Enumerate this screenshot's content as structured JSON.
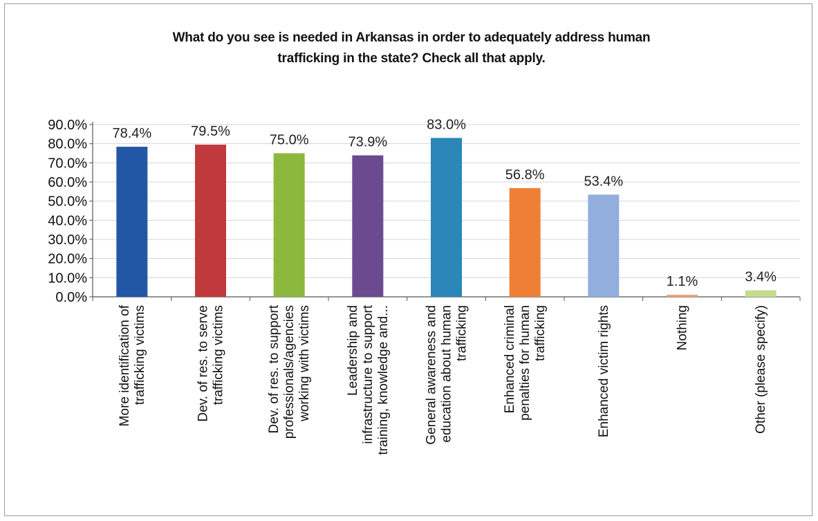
{
  "chart_data": {
    "type": "bar",
    "title": [
      "What do you see is needed in Arkansas in order to adequately address human",
      "trafficking in the state? Check all that apply."
    ],
    "xlabel": "",
    "ylabel": "",
    "ylim": [
      0,
      90
    ],
    "yticks": [
      "0.0%",
      "10.0%",
      "20.0%",
      "30.0%",
      "40.0%",
      "50.0%",
      "60.0%",
      "70.0%",
      "80.0%",
      "90.0%"
    ],
    "grid": true,
    "legend": "none",
    "categories": [
      [
        "More identification of",
        "trafficking victims"
      ],
      [
        "Dev. of res. to serve",
        "trafficking victims"
      ],
      [
        "Dev. of res. to support",
        "professionals/agencies",
        "working with victims"
      ],
      [
        "Leadership and",
        "infrastructure to support",
        "training, knowledge and..."
      ],
      [
        "General awareness and",
        "education about human",
        "trafficking"
      ],
      [
        "Enhanced criminal",
        "penalties for human",
        "trafficking"
      ],
      [
        "Enhanced victim rights"
      ],
      [
        "Nothing"
      ],
      [
        "Other (please specify)"
      ]
    ],
    "values": [
      78.4,
      79.5,
      75.0,
      73.9,
      83.0,
      56.8,
      53.4,
      1.1,
      3.4
    ],
    "value_labels": [
      "78.4%",
      "79.5%",
      "75.0%",
      "73.9%",
      "83.0%",
      "56.8%",
      "53.4%",
      "1.1%",
      "3.4%"
    ],
    "colors": [
      "#2257a6",
      "#c0393d",
      "#8db83e",
      "#6b4a8f",
      "#2a87b8",
      "#ee7f35",
      "#92aedc",
      "#f0a07a",
      "#c5dc8e"
    ]
  }
}
